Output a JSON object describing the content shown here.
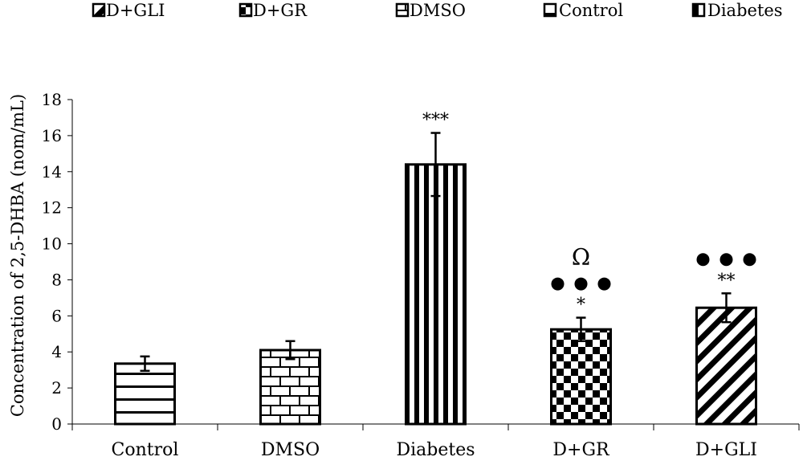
{
  "chart_data": {
    "type": "bar",
    "title": "",
    "xlabel": "",
    "ylabel": "Concentration of 2,5-DHBA (nom/mL)",
    "ylim": [
      0,
      18
    ],
    "yticks": [
      "0",
      "2",
      "4",
      "6",
      "8",
      "10",
      "12",
      "14",
      "16",
      "18"
    ],
    "grid": false,
    "legend_position": "top",
    "legend": [
      "D+GLI",
      "D+GR",
      "DMSO",
      "Control",
      "Diabetes"
    ],
    "categories": [
      "Control",
      "DMSO",
      "Diabetes",
      "D+GR",
      "D+GLI"
    ],
    "values": [
      3.35,
      4.1,
      14.4,
      5.25,
      6.45
    ],
    "errors": [
      0.4,
      0.5,
      1.75,
      0.65,
      0.8
    ],
    "patterns": [
      "horizontal-stripes",
      "brick",
      "vertical-stripes",
      "checkerboard",
      "diagonal-stripes"
    ],
    "annotations": [
      {
        "category": "Diabetes",
        "symbol": "***",
        "dots": "",
        "omega": ""
      },
      {
        "category": "D+GR",
        "symbol": "*",
        "dots": "●●●",
        "omega": "Ω"
      },
      {
        "category": "D+GLI",
        "symbol": "**",
        "dots": "●●●",
        "omega": ""
      }
    ]
  },
  "colors": {
    "ink": "#000000",
    "background": "#ffffff"
  }
}
